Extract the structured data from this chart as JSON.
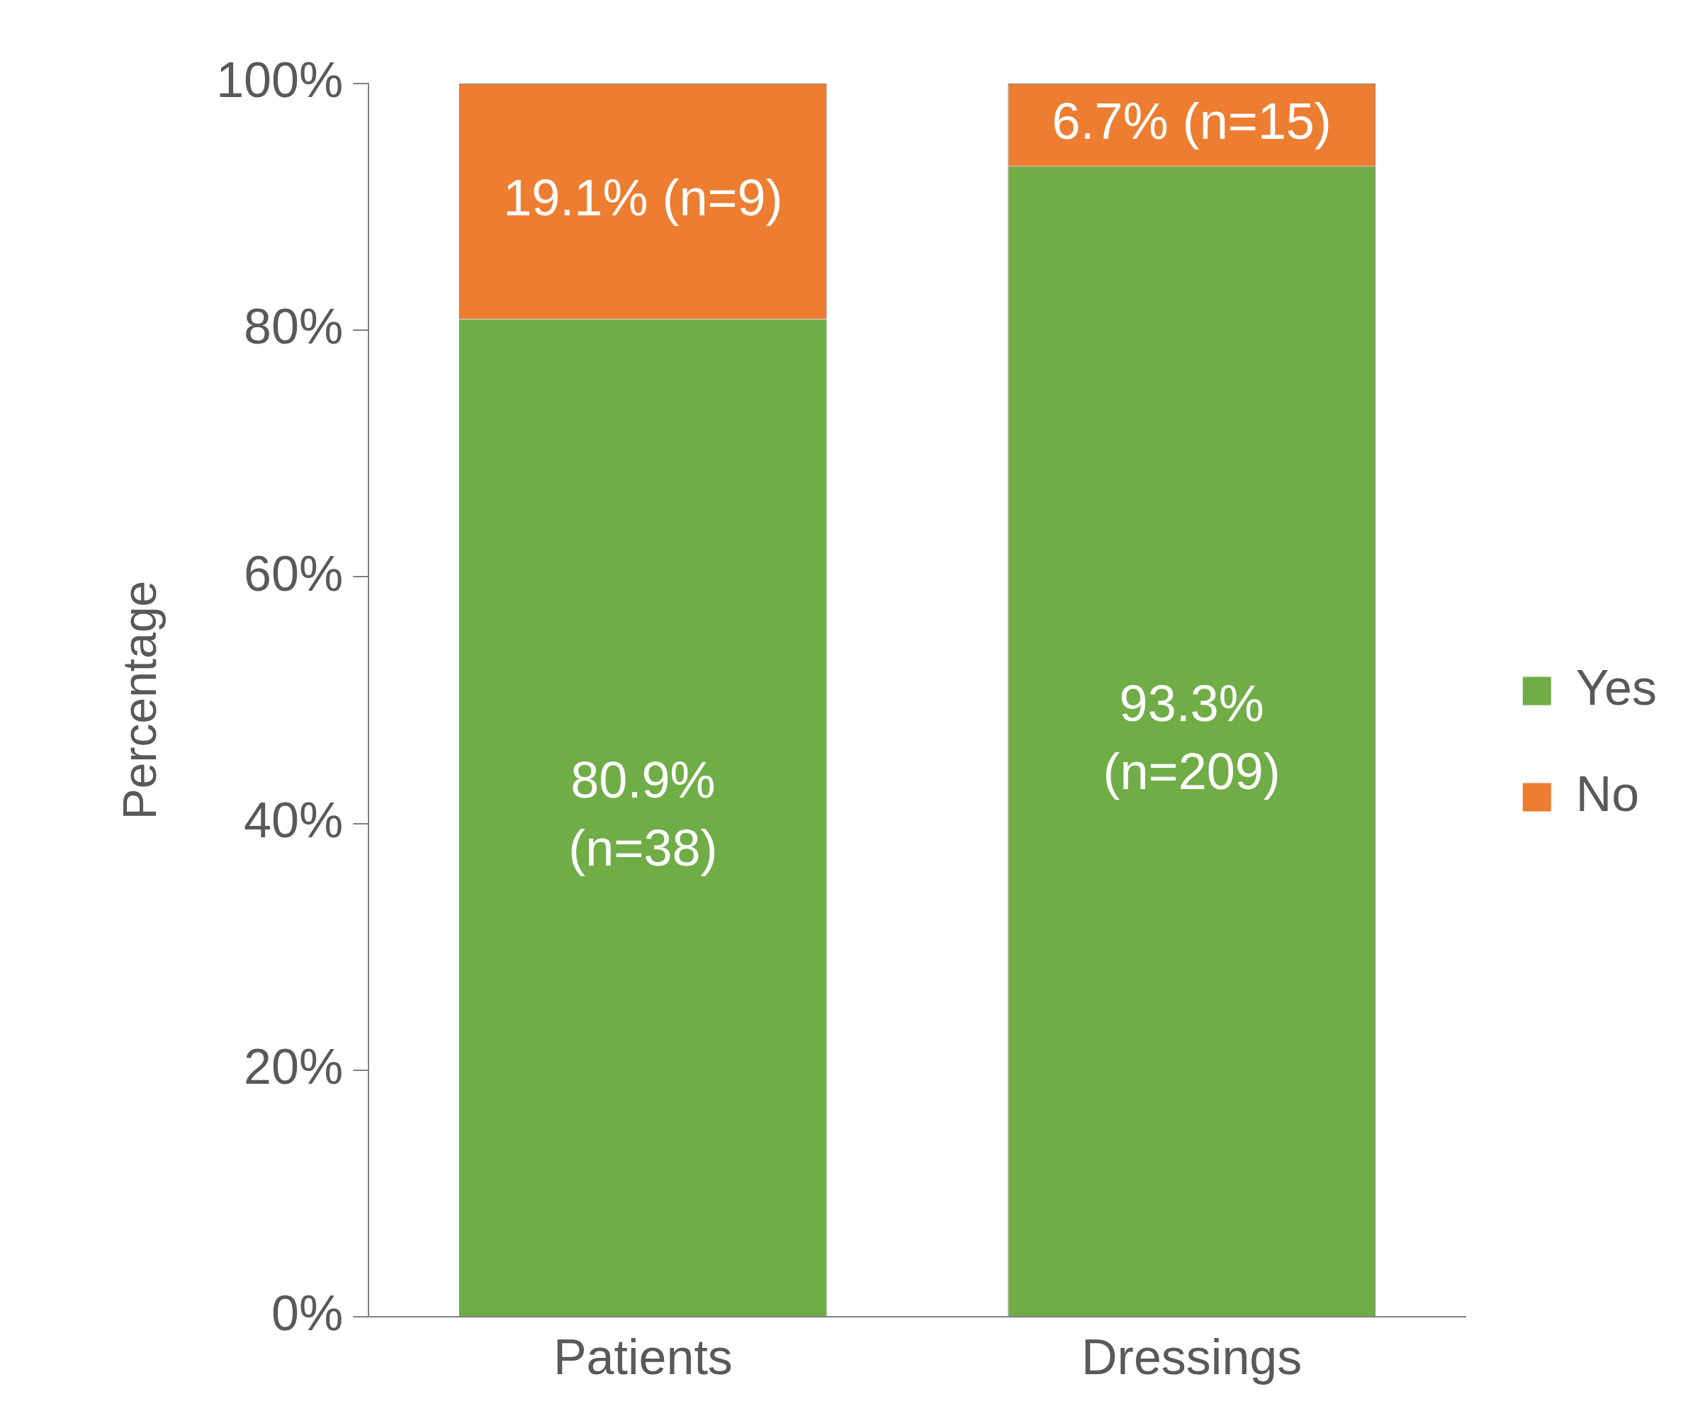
{
  "chart_data": {
    "type": "bar",
    "stacked": true,
    "ylabel": "Percentage",
    "categories": [
      "Patients",
      "Dressings"
    ],
    "series": [
      {
        "name": "Yes",
        "color": "#70ad47",
        "values": [
          80.9,
          93.3
        ],
        "value_labels": [
          "80.9%\n(n=38)",
          "93.3%\n(n=209)"
        ]
      },
      {
        "name": "No",
        "color": "#ed7d31",
        "values": [
          19.1,
          6.7
        ],
        "value_labels": [
          "19.1% (n=9)",
          "6.7% (n=15)"
        ]
      }
    ],
    "ylim": [
      0,
      100
    ],
    "yticks": [
      {
        "value": 0,
        "label": "0%"
      },
      {
        "value": 20,
        "label": "20%"
      },
      {
        "value": 40,
        "label": "40%"
      },
      {
        "value": 60,
        "label": "60%"
      },
      {
        "value": 80,
        "label": "80%"
      },
      {
        "value": 100,
        "label": "100%"
      }
    ],
    "grid": false,
    "legend": "right"
  }
}
